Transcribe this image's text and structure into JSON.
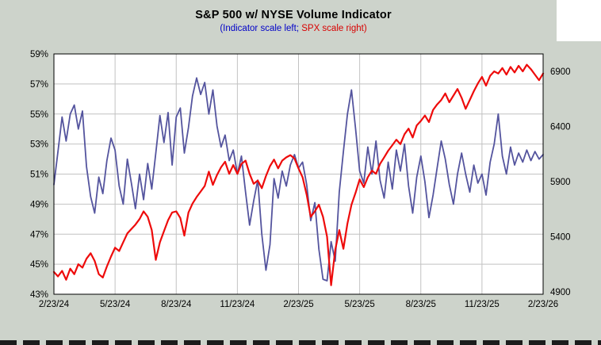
{
  "window": {
    "bg_color": "#cdd3cb"
  },
  "header": {
    "title": "S&P 500 w/ NYSE Volume Indicator",
    "subtitle_left": "(Indicator scale left;",
    "subtitle_right": " SPX scale right)",
    "subtitle_left_color": "#0000c8",
    "subtitle_right_color": "#d80000"
  },
  "chart_data": {
    "type": "line",
    "title": "S&P 500 w/ NYSE Volume Indicator",
    "subtitle": "(Indicator scale left; SPX scale right)",
    "grid": true,
    "grid_color": "#c2c2c2",
    "plot_bg": "#ffffff",
    "x_tick_labels": [
      "2/23/24",
      "5/23/24",
      "8/23/24",
      "11/23/24",
      "2/23/25",
      "5/23/25",
      "8/23/25",
      "11/23/25",
      "2/23/26"
    ],
    "left_axis": {
      "lim": [
        43,
        59
      ],
      "ticks": [
        {
          "value": 59,
          "label": "59%"
        },
        {
          "value": 57,
          "label": "57%"
        },
        {
          "value": 55,
          "label": "55%"
        },
        {
          "value": 53,
          "label": "53%"
        },
        {
          "value": 51,
          "label": "51%"
        },
        {
          "value": 49,
          "label": "49%"
        },
        {
          "value": 47,
          "label": "47%"
        },
        {
          "value": 45,
          "label": "45%"
        },
        {
          "value": 43,
          "label": "43%"
        }
      ]
    },
    "right_axis": {
      "lim": [
        4878,
        7058
      ],
      "ticks": [
        {
          "value": 6900,
          "label": "6900"
        },
        {
          "value": 6400,
          "label": "6400"
        },
        {
          "value": 5900,
          "label": "5900"
        },
        {
          "value": 5400,
          "label": "5400"
        },
        {
          "value": 4900,
          "label": "4900"
        }
      ]
    },
    "series": [
      {
        "name": "NYSE Volume Indicator",
        "axis": "left",
        "color": "#54549e",
        "width": 1.8,
        "values": [
          50.3,
          52.5,
          54.8,
          53.2,
          55.0,
          55.6,
          54.0,
          55.2,
          51.5,
          49.5,
          48.4,
          50.8,
          49.7,
          51.9,
          53.4,
          52.6,
          50.2,
          49.0,
          52.0,
          50.4,
          48.7,
          51.0,
          49.3,
          51.7,
          50.0,
          52.4,
          54.9,
          53.1,
          55.1,
          51.6,
          54.8,
          55.4,
          52.4,
          54.1,
          56.2,
          57.4,
          56.3,
          57.1,
          55.0,
          56.6,
          54.2,
          52.8,
          53.6,
          51.9,
          52.6,
          51.0,
          52.2,
          49.8,
          47.6,
          49.2,
          50.6,
          47.0,
          44.6,
          46.3,
          50.7,
          49.4,
          51.2,
          50.2,
          51.6,
          52.3,
          51.4,
          51.8,
          50.3,
          47.9,
          49.1,
          46.0,
          44.0,
          43.9,
          46.5,
          45.2,
          49.8,
          52.5,
          55.0,
          56.6,
          54.0,
          51.2,
          50.4,
          52.8,
          51.0,
          53.2,
          50.6,
          49.4,
          51.8,
          50.0,
          52.6,
          51.2,
          53.0,
          50.2,
          48.4,
          50.8,
          52.2,
          50.5,
          48.1,
          49.6,
          51.4,
          53.2,
          52.0,
          50.3,
          49.0,
          51.0,
          52.4,
          51.0,
          49.8,
          51.6,
          50.4,
          51.0,
          49.6,
          51.8,
          53.0,
          55.0,
          52.2,
          51.0,
          52.8,
          51.6,
          52.4,
          51.8,
          52.6,
          51.9,
          52.5,
          52.0,
          52.3
        ]
      },
      {
        "name": "SPX",
        "axis": "right",
        "color": "#ee0b0b",
        "width": 2.2,
        "values": [
          5080,
          5040,
          5090,
          5010,
          5110,
          5060,
          5150,
          5120,
          5200,
          5250,
          5180,
          5060,
          5030,
          5130,
          5220,
          5300,
          5270,
          5350,
          5430,
          5470,
          5510,
          5560,
          5630,
          5580,
          5460,
          5190,
          5350,
          5450,
          5550,
          5620,
          5630,
          5570,
          5410,
          5620,
          5700,
          5760,
          5810,
          5860,
          5990,
          5870,
          5960,
          6030,
          6080,
          5970,
          6050,
          5970,
          6060,
          6090,
          5970,
          5880,
          5910,
          5840,
          5950,
          6040,
          6100,
          6020,
          6090,
          6120,
          6140,
          6110,
          6020,
          5940,
          5780,
          5580,
          5630,
          5690,
          5580,
          5400,
          4960,
          5280,
          5460,
          5290,
          5520,
          5690,
          5800,
          5920,
          5850,
          5940,
          6000,
          5970,
          6060,
          6120,
          6180,
          6230,
          6280,
          6240,
          6330,
          6380,
          6300,
          6410,
          6450,
          6500,
          6440,
          6550,
          6600,
          6640,
          6700,
          6620,
          6680,
          6740,
          6660,
          6560,
          6640,
          6720,
          6790,
          6850,
          6770,
          6860,
          6900,
          6880,
          6930,
          6870,
          6940,
          6890,
          6950,
          6900,
          6960,
          6920,
          6870,
          6820,
          6880
        ]
      }
    ]
  }
}
